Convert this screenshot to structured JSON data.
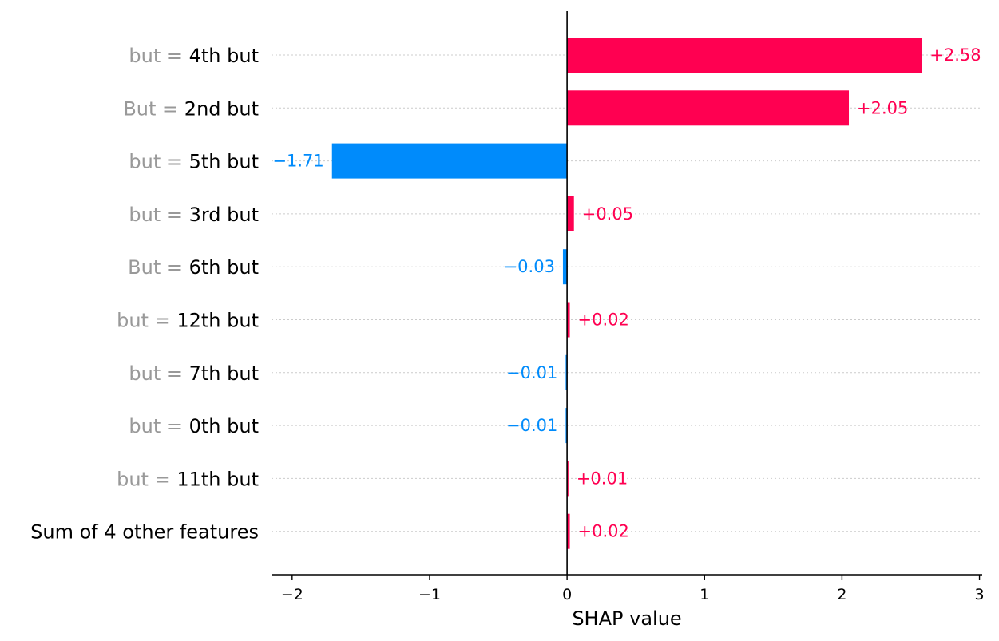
{
  "chart_data": {
    "type": "bar",
    "orientation": "horizontal",
    "xlabel": "SHAP value",
    "xlim": [
      -2.15,
      3.02
    ],
    "xticks": [
      -2,
      -1,
      0,
      1,
      2,
      3
    ],
    "xtick_labels": [
      "−2",
      "−1",
      "0",
      "1",
      "2",
      "3"
    ],
    "colors": {
      "positive": "#ff0051",
      "negative": "#008bfb"
    },
    "grid": "horizontal dotted lines per row",
    "rows": [
      {
        "name": "but",
        "value_text": "4th but",
        "other_text": "",
        "shap": 2.58,
        "label": "+2.58"
      },
      {
        "name": "But",
        "value_text": "2nd but",
        "other_text": "",
        "shap": 2.05,
        "label": "+2.05"
      },
      {
        "name": "but",
        "value_text": "5th but",
        "other_text": "",
        "shap": -1.71,
        "label": "−1.71"
      },
      {
        "name": "but",
        "value_text": "3rd but",
        "other_text": "",
        "shap": 0.05,
        "label": "+0.05"
      },
      {
        "name": "But",
        "value_text": "6th but",
        "other_text": "",
        "shap": -0.03,
        "label": "−0.03"
      },
      {
        "name": "but",
        "value_text": "12th but",
        "other_text": "",
        "shap": 0.02,
        "label": "+0.02"
      },
      {
        "name": "but",
        "value_text": "7th but",
        "other_text": "",
        "shap": -0.01,
        "label": "−0.01"
      },
      {
        "name": "but",
        "value_text": "0th but",
        "other_text": "",
        "shap": -0.01,
        "label": "−0.01"
      },
      {
        "name": "but",
        "value_text": "11th but",
        "other_text": "",
        "shap": 0.01,
        "label": "+0.01"
      },
      {
        "name": "",
        "value_text": "",
        "other_text": "Sum of 4 other features",
        "shap": 0.02,
        "label": "+0.02"
      }
    ]
  }
}
